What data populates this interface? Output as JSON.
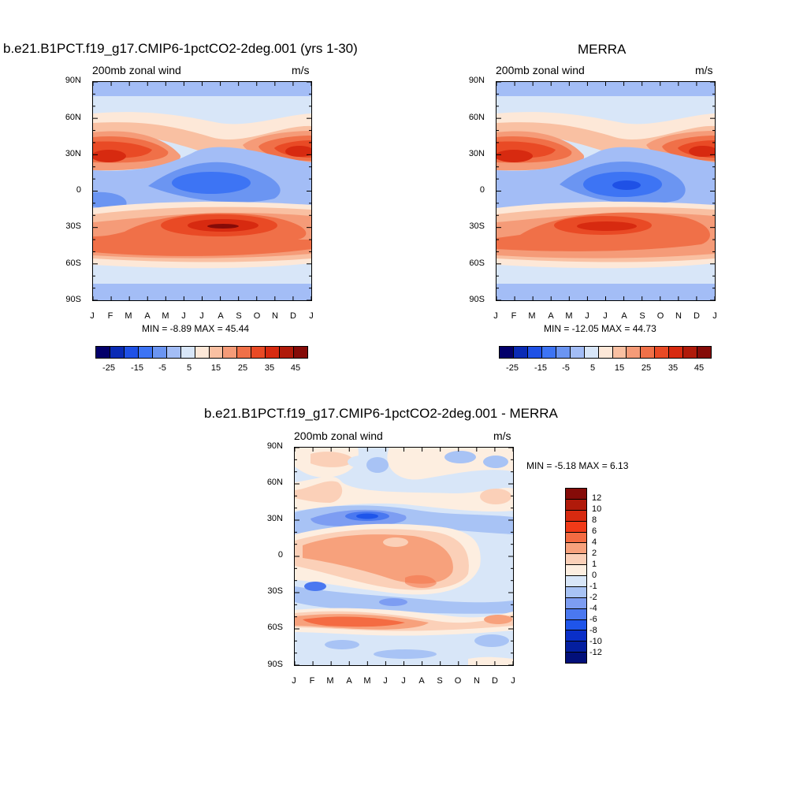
{
  "chart_data": [
    {
      "type": "heatmap",
      "title": "b.e21.B1PCT.f19_g17.CMIP6-1pctCO2-2deg.001 (yrs 1-30)",
      "subtitle": "200mb zonal wind",
      "units": "m/s",
      "x_ticks": [
        "J",
        "F",
        "M",
        "A",
        "M",
        "J",
        "J",
        "A",
        "S",
        "O",
        "N",
        "D",
        "J"
      ],
      "y_ticks": [
        "90N",
        "60N",
        "30N",
        "0",
        "30S",
        "60S",
        "90S"
      ],
      "stats": "MIN =  -8.89 MAX =  45.44",
      "colorbar_labels": [
        "-25",
        "-15",
        "-5",
        "5",
        "15",
        "25",
        "35",
        "45"
      ],
      "features": [
        {
          "month": 0.5,
          "lat": 28,
          "value": 45
        },
        {
          "month": 11.5,
          "lat": 30,
          "value": 40
        },
        {
          "month": 6.5,
          "lat": 5,
          "value": -8
        },
        {
          "month": 7.5,
          "lat": -30,
          "value": 44
        },
        {
          "month": 0.5,
          "lat": -50,
          "value": 30
        },
        {
          "month": 9.5,
          "lat": -50,
          "value": 30
        }
      ]
    },
    {
      "type": "heatmap",
      "title": "MERRA",
      "subtitle": "200mb zonal wind",
      "units": "m/s",
      "x_ticks": [
        "J",
        "F",
        "M",
        "A",
        "M",
        "J",
        "J",
        "A",
        "S",
        "O",
        "N",
        "D",
        "J"
      ],
      "y_ticks": [
        "90N",
        "60N",
        "30N",
        "0",
        "30S",
        "60S",
        "90S"
      ],
      "stats": "MIN = -12.05 MAX =  44.73",
      "colorbar_labels": [
        "-25",
        "-15",
        "-5",
        "5",
        "15",
        "25",
        "35",
        "45"
      ],
      "features": [
        {
          "month": 0.5,
          "lat": 28,
          "value": 44
        },
        {
          "month": 11.5,
          "lat": 30,
          "value": 42
        },
        {
          "month": 7.5,
          "lat": 5,
          "value": -12
        },
        {
          "month": 7.0,
          "lat": -30,
          "value": 40
        },
        {
          "month": 0.5,
          "lat": -48,
          "value": 30
        }
      ]
    },
    {
      "type": "heatmap",
      "title": "b.e21.B1PCT.f19_g17.CMIP6-1pctCO2-2deg.001 - MERRA",
      "subtitle": "200mb zonal wind",
      "units": "m/s",
      "x_ticks": [
        "J",
        "F",
        "M",
        "A",
        "M",
        "J",
        "J",
        "A",
        "S",
        "O",
        "N",
        "D",
        "J"
      ],
      "y_ticks": [
        "90N",
        "60N",
        "30N",
        "0",
        "30S",
        "60S",
        "90S"
      ],
      "stats": "MIN =  -5.18 MAX =   6.13",
      "colorbar_labels": [
        "12",
        "10",
        "8",
        "6",
        "4",
        "2",
        "1",
        "0",
        "-1",
        "-2",
        "-4",
        "-6",
        "-8",
        "-10",
        "-12"
      ],
      "features": [
        {
          "month": 3.5,
          "lat": 33,
          "value": -5
        },
        {
          "month": 5.5,
          "lat": 8,
          "value": 4
        },
        {
          "month": 7.0,
          "lat": -20,
          "value": 4
        },
        {
          "month": 1.5,
          "lat": -55,
          "value": 4
        },
        {
          "month": 11.5,
          "lat": -50,
          "value": 3
        }
      ]
    }
  ],
  "colors": {
    "main_scale": [
      "#03006b",
      "#0a2bb5",
      "#1f51e6",
      "#3d74f4",
      "#6b95f2",
      "#a3bdf6",
      "#d8e6f8",
      "#fde8d8",
      "#f9c0a2",
      "#f59b78",
      "#f07048",
      "#e94a25",
      "#d72a10",
      "#b01a0a",
      "#850b08"
    ],
    "diff_scale": [
      "#850b08",
      "#b01a0a",
      "#d72a10",
      "#f03a18",
      "#f46b42",
      "#f7a17c",
      "#fbd0b8",
      "#fdeee0",
      "#d8e6f8",
      "#a8c3f5",
      "#7d9df2",
      "#4a78f0",
      "#1f55ea",
      "#0a2fc8",
      "#041fa0",
      "#02107a"
    ]
  }
}
